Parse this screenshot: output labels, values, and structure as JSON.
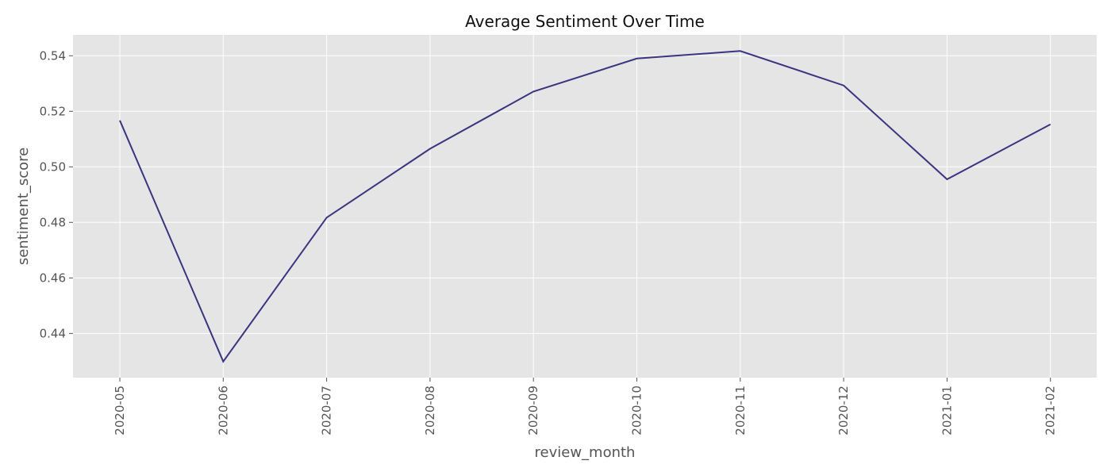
{
  "chart_data": {
    "type": "line",
    "title": "Average Sentiment Over Time",
    "xlabel": "review_month",
    "ylabel": "sentiment_score",
    "categories": [
      "2020-05",
      "2020-06",
      "2020-07",
      "2020-08",
      "2020-09",
      "2020-10",
      "2020-11",
      "2020-12",
      "2021-01",
      "2021-02"
    ],
    "series": [
      {
        "values": [
          0.5167,
          0.4299,
          0.4817,
          0.5065,
          0.5271,
          0.539,
          0.5417,
          0.5293,
          0.4955,
          0.5153
        ]
      }
    ],
    "yticks": [
      0.44,
      0.46,
      0.48,
      0.5,
      0.52,
      0.54
    ],
    "ytick_labels": [
      "0.44",
      "0.46",
      "0.48",
      "0.50",
      "0.52",
      "0.54"
    ],
    "ylim": [
      0.4241,
      0.5475
    ],
    "grid": true,
    "colors": {
      "line": "#3b3480",
      "plot_background": "#e5e5e5",
      "grid": "#ffffff"
    }
  }
}
